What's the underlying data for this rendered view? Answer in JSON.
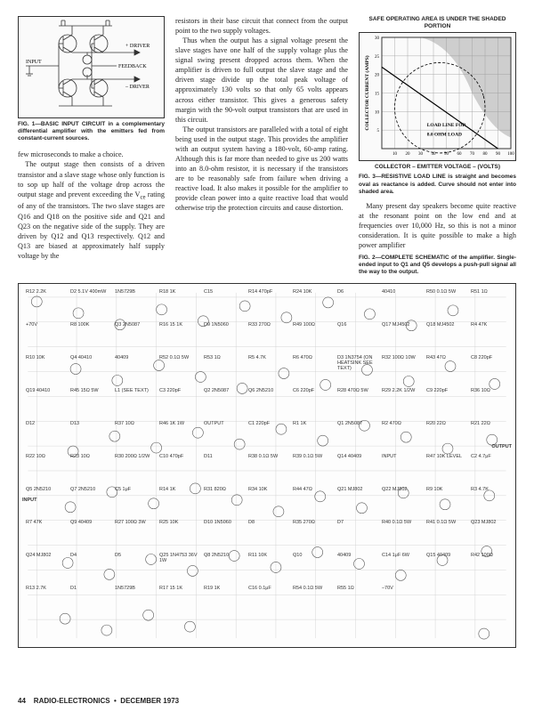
{
  "fig1": {
    "labels": {
      "driver_p": "+ DRIVER",
      "driver_n": "– DRIVER",
      "feedback": "FEEDBACK",
      "input": "INPUT"
    },
    "caption": "FIG. 1—BASIC INPUT CIRCUIT in a complementary differential amplifier with the emitters fed from constant-current sources."
  },
  "fig3": {
    "title": "SAFE OPERATING AREA IS UNDER THE SHADED PORTION",
    "ylabel": "COLLECTOR CURRENT (AMPS)",
    "xlabel": "COLLECTOR – EMITTER VOLTAGE – (VOLTS)",
    "load_label": "LOAD LINE FOR 8.0 OHM LOAD",
    "xticks": [
      0,
      10,
      20,
      30,
      40,
      50,
      60,
      70,
      80,
      90,
      100
    ],
    "yticks": [
      0,
      5,
      10,
      15,
      20,
      25,
      30
    ],
    "caption": "FIG. 3—RESISTIVE LOAD LINE is straight and becomes oval as reactance is added. Curve should not enter into shaded area."
  },
  "text": {
    "p1a": "few microseconds to make a choice.",
    "p1b": "The output stage then consists of a driven transistor and a slave stage whose only function is to sop up half of the voltage drop across the output stage and prevent exceeding the V",
    "p1b_sub": "ce",
    "p1c": " rating of any of the transistors. The two slave stages are Q16 and Q18 on the positive side and Q21 and Q23 on the negative side of the supply. They are driven by Q12 and Q13 respectively. Q12 and Q13 are biased at approximately half supply voltage by the",
    "p2": "resistors in their base circuit that connect from the output point to the two supply voltages.",
    "p3": "Thus when the output has a signal voltage present the slave stages have one half of the supply voltage plus the signal swing present dropped across them. When the amplifier is driven to full output the slave stage and the driven stage divide up the total peak voltage of approximately 130 volts so that only 65 volts appears across either transistor. This gives a generous safety margin with the 90-volt output transistors that are used in this circuit.",
    "p4": "The output transistors are paralleled with a total of eight being used in the output stage. This provides the amplifier with an output system having a 180-volt, 60-amp rating. Although this is far more than needed to give us 200 watts into an 8.0-ohm resistor, it is necessary if the transistors are to be reasonably safe from failure when driving a reactive load. It also makes it possible for the amplifier to provide clean power into a quite reactive load that would otherwise trip the protection circuits and cause distortion.",
    "p5": "Many present day speakers become quite reactive at the resonant point on the low end and at frequencies over 10,000 Hz, so this is not a minor consideration. It is quite possible to make a high power amplifier",
    "fig2_caption": "FIG. 2—COMPLETE SCHEMATIC of the amplifier. Single-ended input to Q1 and Q5 develops a push-pull signal all the way to the output."
  },
  "schematic": {
    "parts": [
      "R12 2.2K",
      "D2 5.1V 400mW",
      "1N5729B",
      "R18 1K",
      "C15",
      "R14 470pF",
      "R24 10K",
      "D6",
      "40410",
      "R50 0.1Ω 5W",
      "R51 1Ω",
      "+70V",
      "R8 100K",
      "Q3 2N5087",
      "R16 15 1K",
      "D9 1N5060",
      "R33 270Ω",
      "R49 100Ω",
      "Q16",
      "Q17 MJ4502",
      "Q18 MJ4502",
      "R4 47K",
      "R10 10K",
      "Q4 40410",
      "40409",
      "R52 0.1Ω 5W",
      "R53 1Ω",
      "R5 4.7K",
      "R6 470Ω",
      "D3 1N3754 (ON HEATSINK SEE TEXT)",
      "R32 100Ω 10W",
      "R43 47Ω",
      "C8 220pF",
      "Q19 40410",
      "R45 15Ω 5W",
      "L1 (SEE TEXT)",
      "C3 220pF",
      "Q2 2N5087",
      "Q6 2N5210",
      "C6 220pF",
      "R28 470Ω 5W",
      "R29 2.2K 1/2W",
      "C9 220pF",
      "R36 10Ω",
      "D12",
      "D13",
      "R37 10Ω",
      "R46 1K 1W",
      "OUTPUT",
      "C1 220pF",
      "R1 1K",
      "Q1 2N5087",
      "R2 470Ω",
      "R20 22Ω",
      "R21 22Ω",
      "R22 10Ω",
      "R23 10Ω",
      "R30 200Ω 1/2W",
      "C10 470pF",
      "D11",
      "R38 0.1Ω 5W",
      "R39 0.1Ω 5W",
      "Q14 40409",
      "INPUT",
      "R47 10K LEVEL",
      "C2 4.7μF",
      "Q5 2N5210",
      "Q7 2N5210",
      "C5 1μF",
      "R14 1K",
      "R31 820Ω",
      "R34 10K",
      "R44 47Ω",
      "Q21 MJ802",
      "Q22 MJ802",
      "R9 10K",
      "R3 4.7K",
      "R7 47K",
      "Q9 40409",
      "R27 100Ω 3W",
      "R25 10K",
      "D10 1N5060",
      "D8",
      "R35 270Ω",
      "D7",
      "R40 0.1Ω 5W",
      "R41 0.1Ω 5W",
      "Q23 MJ802",
      "Q24 MJ802",
      "D4",
      "D5",
      "Q25 1N4753 36V 1W",
      "Q8 2N5210",
      "R11 10K",
      "Q10",
      "40409",
      "C14 1μF 6W",
      "Q15 40409",
      "R42 100Ω",
      "R13 2.7K",
      "D1",
      "1N5729B",
      "R17 15 1K",
      "R19 1K",
      "C16 0.1μF",
      "R54 0.1Ω 5W",
      "R55 1Ω",
      "–70V"
    ]
  },
  "footer": {
    "page": "44",
    "pub": "RADIO-ELECTRONICS",
    "bullet": "•",
    "date": "DECEMBER 1973"
  }
}
